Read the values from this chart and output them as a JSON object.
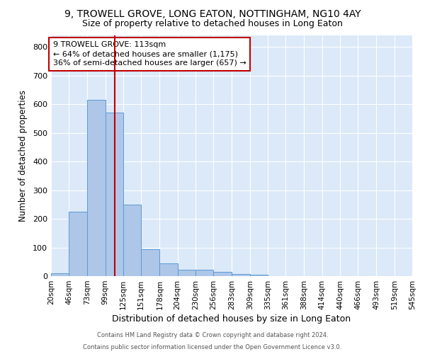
{
  "title1": "9, TROWELL GROVE, LONG EATON, NOTTINGHAM, NG10 4AY",
  "title2": "Size of property relative to detached houses in Long Eaton",
  "xlabel": "Distribution of detached houses by size in Long Eaton",
  "ylabel": "Number of detached properties",
  "footer1": "Contains HM Land Registry data © Crown copyright and database right 2024.",
  "footer2": "Contains public sector information licensed under the Open Government Licence v3.0.",
  "bin_edges": [
    20,
    46,
    73,
    99,
    125,
    151,
    178,
    204,
    230,
    256,
    283,
    309,
    335,
    361,
    388,
    414,
    440,
    466,
    493,
    519,
    545
  ],
  "bar_heights": [
    10,
    225,
    615,
    570,
    250,
    95,
    45,
    22,
    22,
    15,
    8,
    5,
    0,
    0,
    0,
    0,
    0,
    0,
    0,
    0
  ],
  "tick_labels": [
    "20sqm",
    "46sqm",
    "73sqm",
    "99sqm",
    "125sqm",
    "151sqm",
    "178sqm",
    "204sqm",
    "230sqm",
    "256sqm",
    "283sqm",
    "309sqm",
    "335sqm",
    "361sqm",
    "388sqm",
    "414sqm",
    "440sqm",
    "466sqm",
    "493sqm",
    "519sqm",
    "545sqm"
  ],
  "bar_color": "#aec6e8",
  "bar_edge_color": "#5b9bd5",
  "vline_x": 113,
  "vline_color": "#c00000",
  "annotation_line1": "9 TROWELL GROVE: 113sqm",
  "annotation_line2": "← 64% of detached houses are smaller (1,175)",
  "annotation_line3": "36% of semi-detached houses are larger (657) →",
  "annotation_box_color": "#c00000",
  "annotation_box_fill": "white",
  "ylim": [
    0,
    840
  ],
  "yticks": [
    0,
    100,
    200,
    300,
    400,
    500,
    600,
    700,
    800
  ],
  "bg_color": "#dce9f8",
  "grid_color": "white",
  "title1_fontsize": 10,
  "title2_fontsize": 9,
  "xlabel_fontsize": 9,
  "ylabel_fontsize": 8.5,
  "annot_fontsize": 8,
  "tick_fontsize": 7.5,
  "ytick_fontsize": 8
}
